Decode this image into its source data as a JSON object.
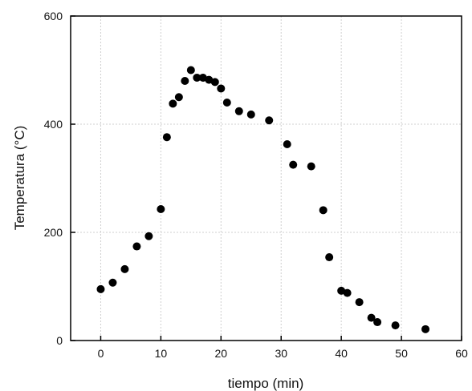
{
  "chart_data": {
    "type": "scatter",
    "title": "",
    "xlabel": "tiempo (min)",
    "ylabel": "Temperatura (°C)",
    "xlim": [
      -5,
      60
    ],
    "ylim": [
      0,
      600
    ],
    "x_ticks": [
      0,
      10,
      20,
      30,
      40,
      50,
      60
    ],
    "y_ticks": [
      0,
      200,
      400,
      600
    ],
    "grid": true,
    "series": [
      {
        "points": [
          [
            0,
            95
          ],
          [
            2,
            107
          ],
          [
            4,
            132
          ],
          [
            6,
            174
          ],
          [
            8,
            193
          ],
          [
            10,
            243
          ],
          [
            11,
            376
          ],
          [
            12,
            438
          ],
          [
            13,
            450
          ],
          [
            14,
            480
          ],
          [
            15,
            500
          ],
          [
            16,
            486
          ],
          [
            17,
            486
          ],
          [
            18,
            482
          ],
          [
            19,
            478
          ],
          [
            20,
            466
          ],
          [
            21,
            440
          ],
          [
            23,
            424
          ],
          [
            25,
            418
          ],
          [
            28,
            407
          ],
          [
            31,
            363
          ],
          [
            32,
            325
          ],
          [
            35,
            322
          ],
          [
            37,
            241
          ],
          [
            38,
            154
          ],
          [
            40,
            92
          ],
          [
            41,
            88
          ],
          [
            43,
            71
          ],
          [
            45,
            42
          ],
          [
            46,
            34
          ],
          [
            49,
            28
          ],
          [
            54,
            21
          ]
        ]
      }
    ]
  },
  "colors": {
    "marker": "#000000",
    "grid": "#cfcfcf",
    "axis": "#000000"
  }
}
